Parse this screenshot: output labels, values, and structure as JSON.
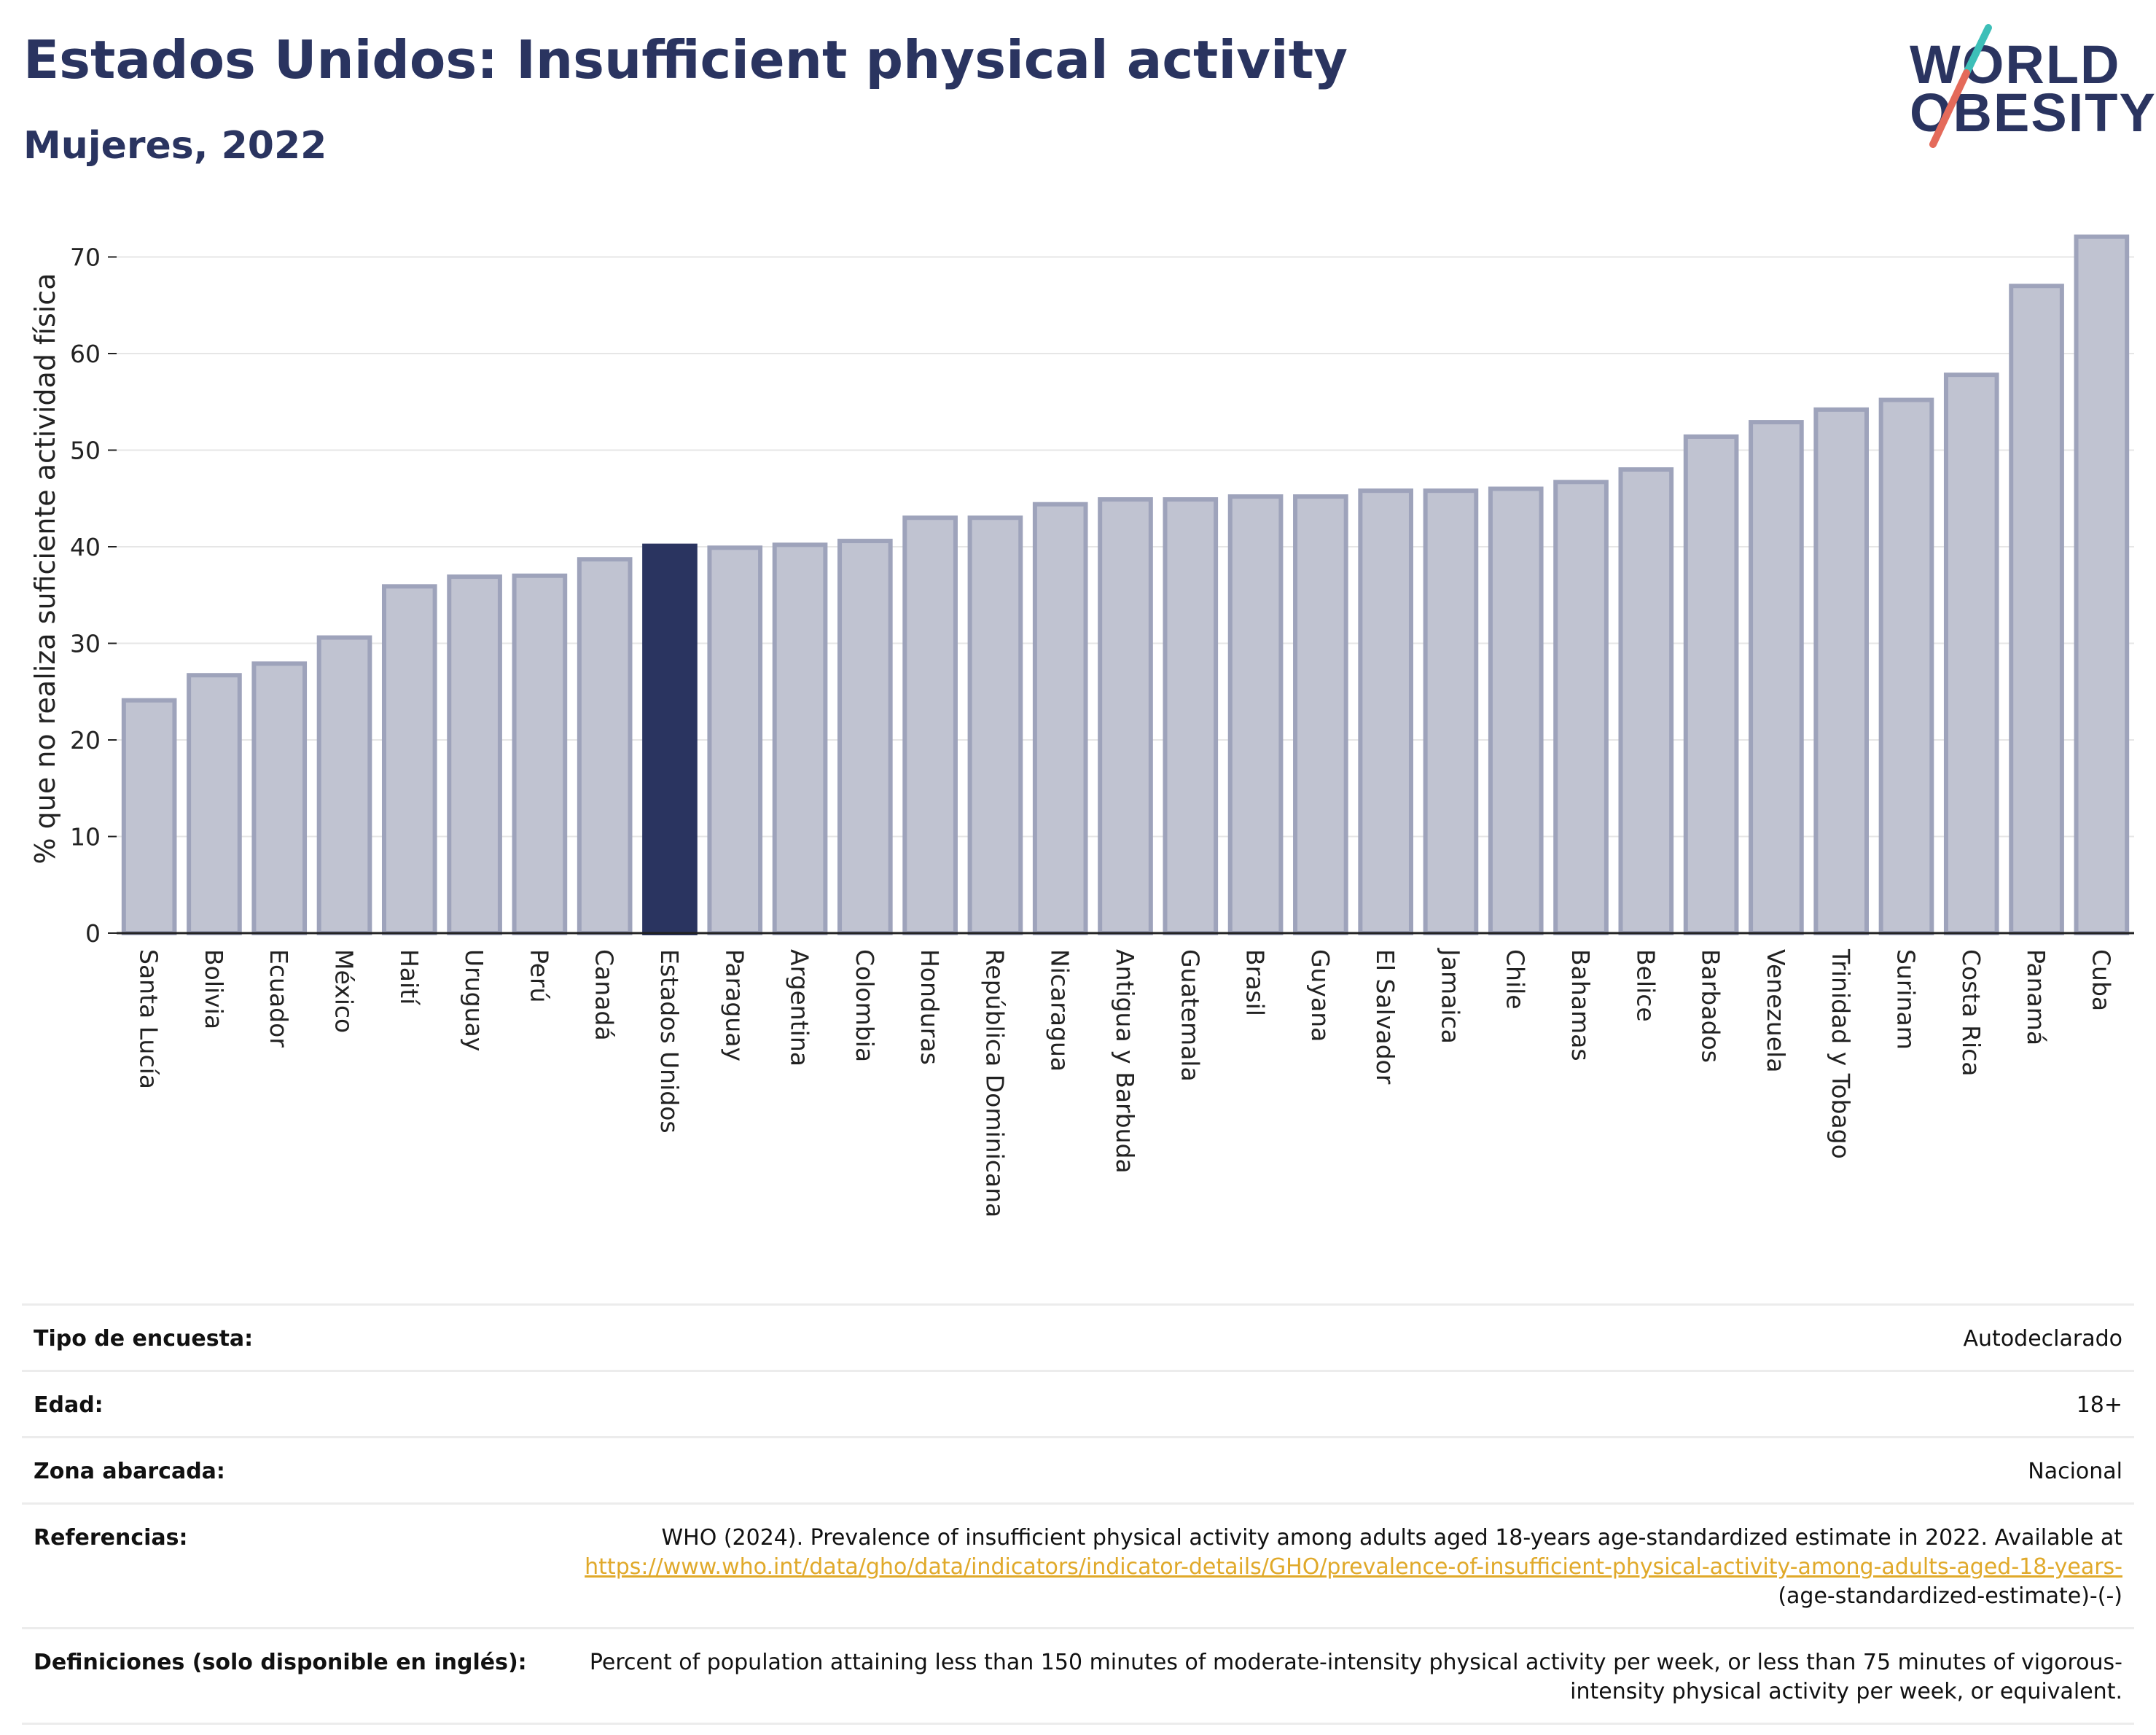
{
  "header": {
    "title": "Estados Unidos: Insufficient physical activity",
    "subtitle": "Mujeres, 2022"
  },
  "logo": {
    "line1": "WORLD",
    "line2": "OBESITY",
    "colors": {
      "text": "#2a3460",
      "accent_teal": "#3dbfb8",
      "accent_red": "#e46a5a"
    }
  },
  "chart_data": {
    "type": "bar",
    "ylabel": "% que no realiza suficiente actividad física",
    "xlabel": "",
    "ylim": [
      0,
      75
    ],
    "yticks": [
      0,
      10,
      20,
      30,
      40,
      50,
      60,
      70
    ],
    "grid": true,
    "highlight": "Estados Unidos",
    "colors": {
      "bar": "#c0c3d1",
      "bar_edge": "#9ea3bb",
      "highlight": "#2a3460",
      "grid": "#e6e6e6",
      "axis": "#222222"
    },
    "categories": [
      "Santa Lucía",
      "Bolivia",
      "Ecuador",
      "México",
      "Haití",
      "Uruguay",
      "Perú",
      "Canadá",
      "Estados Unidos",
      "Paraguay",
      "Argentina",
      "Colombia",
      "Honduras",
      "República Dominicana",
      "Nicaragua",
      "Antigua y Barbuda",
      "Guatemala",
      "Brasil",
      "Guyana",
      "El Salvador",
      "Jamaica",
      "Chile",
      "Bahamas",
      "Belice",
      "Barbados",
      "Venezuela",
      "Trinidad y Tobago",
      "Surinam",
      "Costa Rica",
      "Panamá",
      "Cuba"
    ],
    "values": [
      24.1,
      26.7,
      27.9,
      30.6,
      35.9,
      36.9,
      37.0,
      38.7,
      40.1,
      39.9,
      40.2,
      40.6,
      43.0,
      43.0,
      44.4,
      44.9,
      44.9,
      45.2,
      45.2,
      45.8,
      45.8,
      46.0,
      46.7,
      48.0,
      51.4,
      52.9,
      54.2,
      55.2,
      57.8,
      67.0,
      72.1
    ]
  },
  "info": [
    {
      "key": "Tipo de encuesta:",
      "value": "Autodeclarado"
    },
    {
      "key": "Edad:",
      "value": "18+"
    },
    {
      "key": "Zona abarcada:",
      "value": "Nacional"
    },
    {
      "key": "Referencias:",
      "value_before": "WHO (2024). Prevalence of insufficient physical activity among adults aged 18-years age-standardized estimate in 2022. Available at",
      "link": "https://www.who.int/data/gho/data/indicators/indicator-details/GHO/prevalence-of-insufficient-physical-activity-among-adults-aged-18-years-",
      "value_after": "(age-standardized-estimate)-(-)"
    },
    {
      "key": "Definiciones (solo disponible en inglés):",
      "value": "Percent of population attaining less than 150 minutes of moderate-intensity physical activity per week, or less than 75 minutes of vigorous-intensity physical activity per week, or equivalent."
    }
  ]
}
